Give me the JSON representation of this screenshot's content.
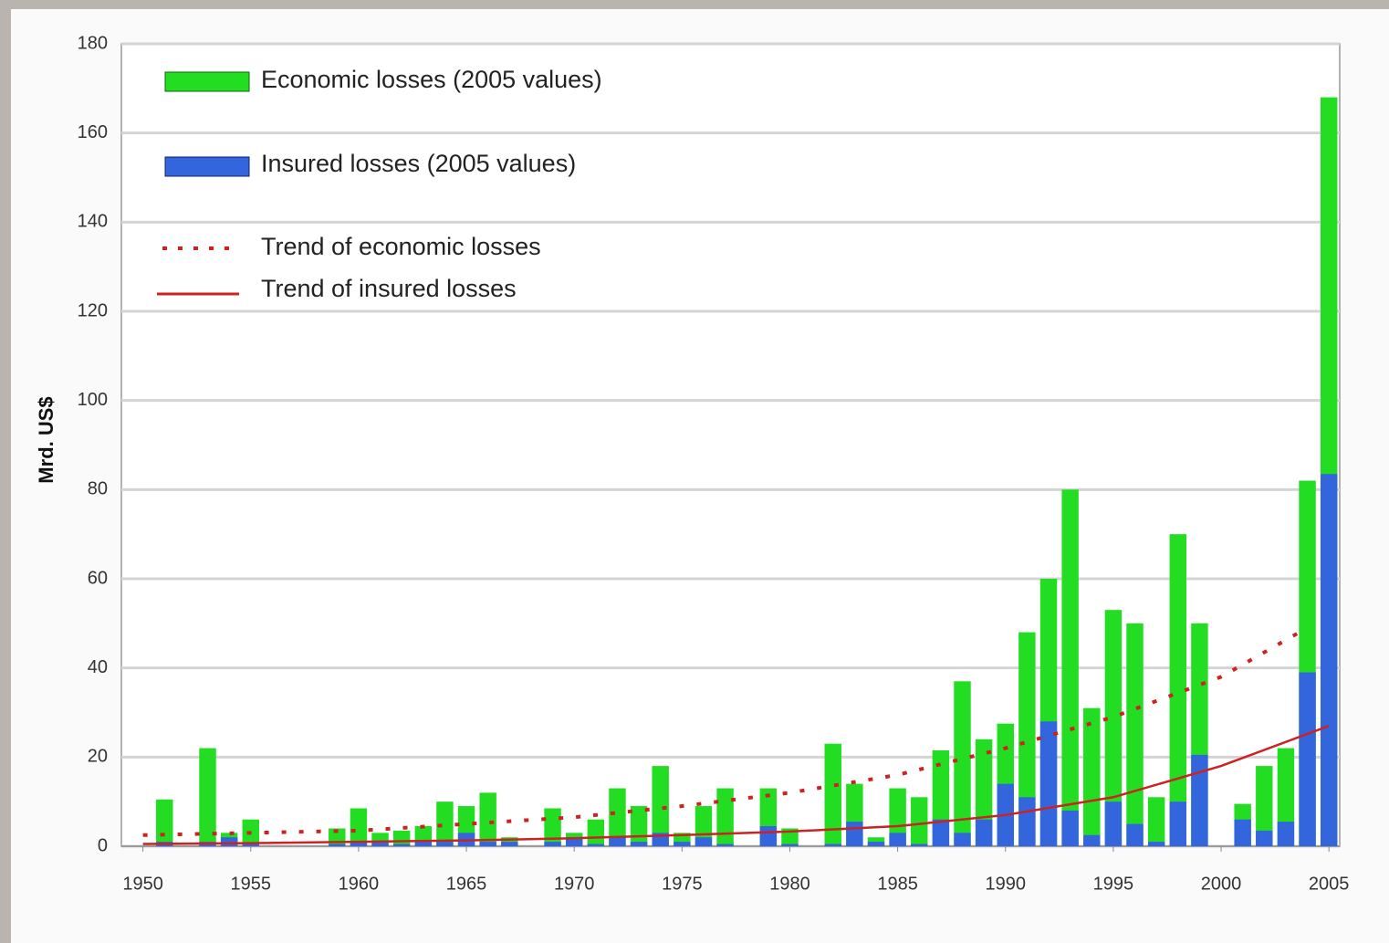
{
  "chart_data": {
    "type": "bar",
    "y_label": "Mrd. US$",
    "x": [
      1950,
      1951,
      1952,
      1953,
      1954,
      1955,
      1956,
      1957,
      1958,
      1959,
      1960,
      1961,
      1962,
      1963,
      1964,
      1965,
      1966,
      1967,
      1968,
      1969,
      1970,
      1971,
      1972,
      1973,
      1974,
      1975,
      1976,
      1977,
      1978,
      1979,
      1980,
      1981,
      1982,
      1983,
      1984,
      1985,
      1986,
      1987,
      1988,
      1989,
      1990,
      1991,
      1992,
      1993,
      1994,
      1995,
      1996,
      1997,
      1998,
      1999,
      2000,
      2001,
      2002,
      2003,
      2004,
      2005
    ],
    "series": [
      {
        "name": "Economic losses (2005 values)",
        "color": "#22dd22",
        "values": [
          0,
          10.5,
          0,
          22,
          3,
          6,
          0,
          0,
          0,
          4,
          8.5,
          3,
          3.5,
          4.5,
          10,
          9,
          12,
          2,
          0,
          8.5,
          3,
          6,
          13,
          9,
          18,
          3,
          9,
          13,
          0,
          13,
          4,
          0,
          23,
          14,
          2,
          13,
          11,
          21.5,
          37,
          24,
          27.5,
          48,
          60,
          80,
          31,
          53,
          50,
          11,
          70,
          50,
          0,
          9.5,
          18,
          22,
          82,
          168
        ]
      },
      {
        "name": "Insured losses (2005 values)",
        "color": "#3366dd",
        "values": [
          0,
          1,
          0,
          1,
          2,
          0.5,
          0,
          0,
          0,
          0.5,
          1,
          1,
          0.5,
          1,
          1,
          3,
          1,
          1,
          0,
          1,
          2,
          0.5,
          2,
          1,
          3,
          1,
          2,
          0.5,
          0,
          4.5,
          0.5,
          0,
          0.5,
          5.5,
          1,
          3,
          0.5,
          6,
          3,
          6,
          14,
          11,
          28,
          8,
          2.5,
          10,
          5,
          1,
          10,
          20.5,
          0,
          6,
          3.5,
          5.5,
          39,
          83.5
        ]
      },
      {
        "name": "Trend of economic losses",
        "type": "line",
        "color": "#cc2222",
        "dashed": true,
        "x": [
          1950,
          1955,
          1960,
          1965,
          1970,
          1975,
          1980,
          1985,
          1990,
          1995,
          2000,
          2004
        ],
        "values": [
          2.5,
          3,
          3.5,
          5,
          6.5,
          9,
          12,
          16,
          22,
          29,
          38,
          49
        ]
      },
      {
        "name": "Trend of insured losses",
        "type": "line",
        "color": "#cc2222",
        "dashed": false,
        "x": [
          1950,
          1955,
          1960,
          1965,
          1970,
          1975,
          1980,
          1985,
          1990,
          1995,
          2000,
          2005
        ],
        "values": [
          0.5,
          0.7,
          1,
          1.3,
          1.8,
          2.5,
          3.3,
          4.5,
          7,
          11,
          18,
          27
        ]
      }
    ],
    "xlim": [
      1949,
      2005.5
    ],
    "xticks": [
      1950,
      1955,
      1960,
      1965,
      1970,
      1975,
      1980,
      1985,
      1990,
      1995,
      2000,
      2005
    ],
    "ylim": [
      0,
      180
    ],
    "yticks": [
      0,
      20,
      40,
      60,
      80,
      100,
      120,
      140,
      160,
      180
    ],
    "grid": true
  }
}
